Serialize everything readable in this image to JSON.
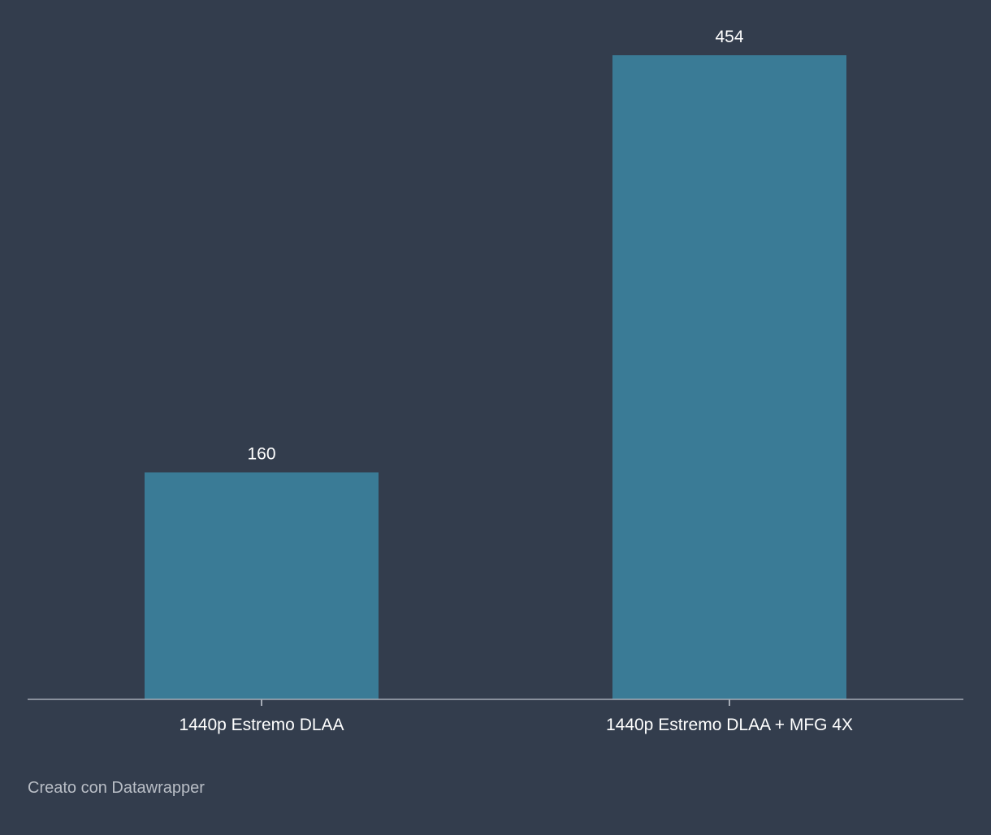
{
  "chart_data": {
    "type": "bar",
    "title": "",
    "xlabel": "",
    "ylabel": "",
    "categories": [
      "1440p Estremo DLAA",
      "1440p Estremo DLAA + MFG 4X"
    ],
    "values": [
      160,
      454
    ],
    "value_labels": [
      "160",
      "454"
    ],
    "ylim": [
      0,
      454
    ],
    "grid": false,
    "legend": "none",
    "colors": {
      "bar": "#3a7b96",
      "axis": "#a6acb6",
      "tick_label": "#ffffff",
      "value_label": "#ffffff",
      "background": "#333d4d"
    }
  },
  "footer": {
    "credit": "Creato con Datawrapper"
  }
}
